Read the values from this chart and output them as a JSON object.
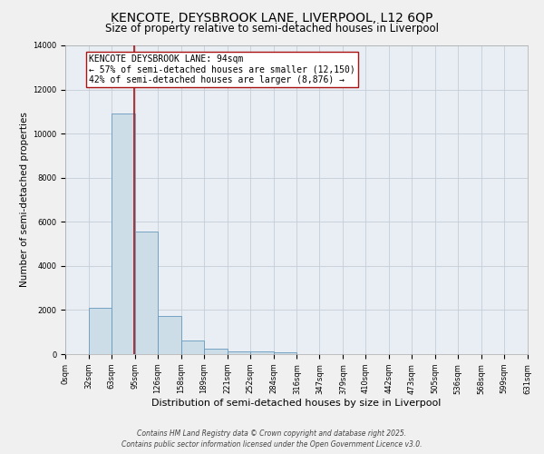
{
  "title": "KENCOTE, DEYSBROOK LANE, LIVERPOOL, L12 6QP",
  "subtitle": "Size of property relative to semi-detached houses in Liverpool",
  "xlabel": "Distribution of semi-detached houses by size in Liverpool",
  "ylabel": "Number of semi-detached properties",
  "annotation_line1": "KENCOTE DEYSBROOK LANE: 94sqm",
  "annotation_line2": "← 57% of semi-detached houses are smaller (12,150)",
  "annotation_line3": "42% of semi-detached houses are larger (8,876) →",
  "bins": [
    0,
    32,
    63,
    95,
    126,
    158,
    189,
    221,
    252,
    284,
    316,
    347,
    379,
    410,
    442,
    473,
    505,
    536,
    568,
    599,
    631
  ],
  "counts": [
    0,
    2100,
    10900,
    5550,
    1750,
    620,
    260,
    130,
    110,
    80,
    0,
    0,
    0,
    0,
    0,
    0,
    0,
    0,
    0,
    0
  ],
  "bar_facecolor": "#ccdde8",
  "bar_edgecolor": "#6699bb",
  "vline_x": 94,
  "vline_color": "#aa1111",
  "annot_facecolor": "#ffffff",
  "annot_edgecolor": "#aa1111",
  "grid_color": "#c5cdd8",
  "plot_bg": "#e8eef4",
  "fig_bg": "#f0f0f0",
  "ylim": [
    0,
    14000
  ],
  "yticks": [
    0,
    2000,
    4000,
    6000,
    8000,
    10000,
    12000,
    14000
  ],
  "tick_labels": [
    "0sqm",
    "32sqm",
    "63sqm",
    "95sqm",
    "126sqm",
    "158sqm",
    "189sqm",
    "221sqm",
    "252sqm",
    "284sqm",
    "316sqm",
    "347sqm",
    "379sqm",
    "410sqm",
    "442sqm",
    "473sqm",
    "505sqm",
    "536sqm",
    "568sqm",
    "599sqm",
    "631sqm"
  ],
  "footer_line1": "Contains HM Land Registry data © Crown copyright and database right 2025.",
  "footer_line2": "Contains public sector information licensed under the Open Government Licence v3.0.",
  "title_fontsize": 10,
  "subtitle_fontsize": 8.5,
  "ylabel_fontsize": 7.5,
  "xlabel_fontsize": 8,
  "tick_fontsize": 6,
  "annotation_fontsize": 7,
  "footer_fontsize": 5.5
}
